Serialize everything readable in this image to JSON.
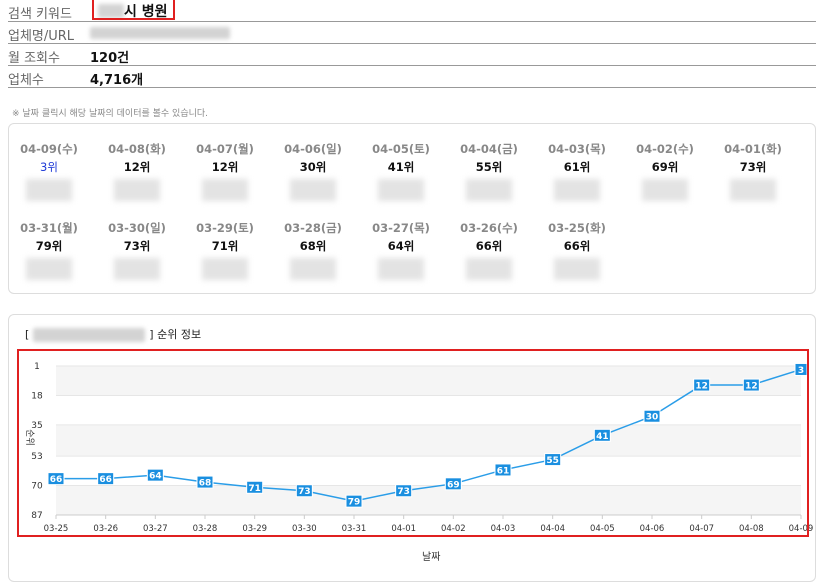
{
  "info": {
    "keyword_label": "검색 키워드",
    "keyword_value": "시 병원",
    "name_label": "업체명/URL",
    "monthly_label": "월 조회수",
    "monthly_value": "120건",
    "count_label": "업체수",
    "count_value": "4,716개"
  },
  "notice": "※ 날짜 클릭시 해당 날짜의 데이터를 볼수 있습니다.",
  "days": [
    {
      "date": "04-09(수)",
      "rank": "3위"
    },
    {
      "date": "04-08(화)",
      "rank": "12위"
    },
    {
      "date": "04-07(월)",
      "rank": "12위"
    },
    {
      "date": "04-06(일)",
      "rank": "30위"
    },
    {
      "date": "04-05(토)",
      "rank": "41위"
    },
    {
      "date": "04-04(금)",
      "rank": "55위"
    },
    {
      "date": "04-03(목)",
      "rank": "61위"
    },
    {
      "date": "04-02(수)",
      "rank": "69위"
    },
    {
      "date": "04-01(화)",
      "rank": "73위"
    },
    {
      "date": "03-31(월)",
      "rank": "79위"
    },
    {
      "date": "03-30(일)",
      "rank": "73위"
    },
    {
      "date": "03-29(토)",
      "rank": "71위"
    },
    {
      "date": "03-28(금)",
      "rank": "68위"
    },
    {
      "date": "03-27(목)",
      "rank": "64위"
    },
    {
      "date": "03-26(수)",
      "rank": "66위"
    },
    {
      "date": "03-25(화)",
      "rank": "66위"
    }
  ],
  "chart": {
    "title_prefix": "[",
    "title_suffix": "] 순위 정보"
  },
  "chart_data": {
    "type": "line",
    "x": [
      "03-25",
      "03-26",
      "03-27",
      "03-28",
      "03-29",
      "03-30",
      "03-31",
      "04-01",
      "04-02",
      "04-03",
      "04-04",
      "04-05",
      "04-06",
      "04-07",
      "04-08",
      "04-09"
    ],
    "series": [
      {
        "values": [
          66,
          66,
          64,
          68,
          71,
          73,
          79,
          73,
          69,
          61,
          55,
          41,
          30,
          12,
          12,
          3
        ]
      }
    ],
    "y_ticks": [
      1,
      18,
      35,
      53,
      70,
      87
    ],
    "ylim": [
      1,
      87
    ],
    "y_reversed": true,
    "xlabel": "날짜",
    "ylabel": "순위",
    "line_color": "#2a9de8",
    "label_bg": "#1a8fe0",
    "band_color": "#f5f5f5"
  }
}
